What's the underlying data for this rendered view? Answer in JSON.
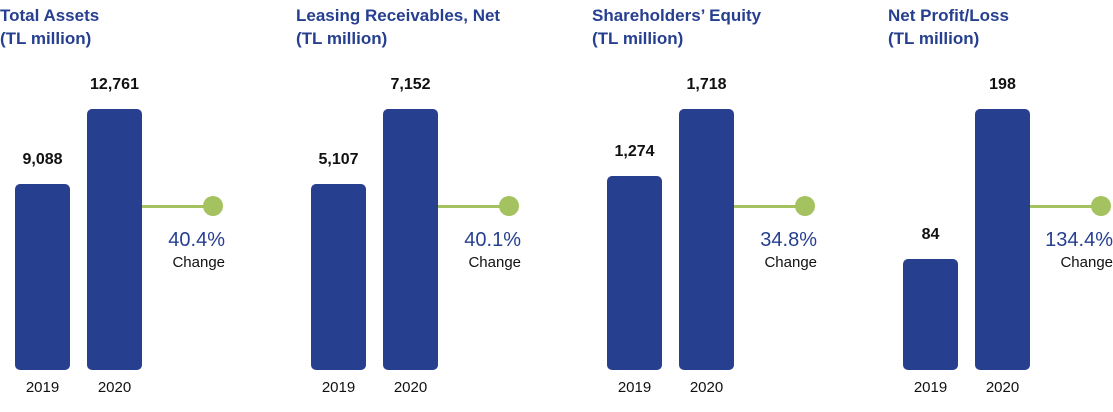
{
  "chart_data": [
    {
      "type": "bar",
      "title_lines": [
        "Total Assets",
        "(TL million)"
      ],
      "categories": [
        "2019",
        "2020"
      ],
      "values": [
        9088,
        12761
      ],
      "value_labels": [
        "9,088",
        "12,761"
      ],
      "change": {
        "value": "40.4%",
        "label": "Change"
      }
    },
    {
      "type": "bar",
      "title_lines": [
        "Leasing Receivables, Net",
        "(TL million)"
      ],
      "categories": [
        "2019",
        "2020"
      ],
      "values": [
        5107,
        7152
      ],
      "value_labels": [
        "5,107",
        "7,152"
      ],
      "change": {
        "value": "40.1%",
        "label": "Change"
      }
    },
    {
      "type": "bar",
      "title_lines": [
        "Shareholders’ Equity",
        "(TL million)"
      ],
      "categories": [
        "2019",
        "2020"
      ],
      "values": [
        1274,
        1718
      ],
      "value_labels": [
        "1,274",
        "1,718"
      ],
      "change": {
        "value": "34.8%",
        "label": "Change"
      }
    },
    {
      "type": "bar",
      "title_lines": [
        "Net Profit/Loss",
        "(TL million)"
      ],
      "categories": [
        "2019",
        "2020"
      ],
      "values": [
        84,
        198
      ],
      "value_labels": [
        "84",
        "198"
      ],
      "change": {
        "value": "134.4%",
        "label": "Change"
      }
    }
  ],
  "colors": {
    "bar": "#273f8f",
    "title": "#263f8f",
    "accent": "#a4c25f"
  }
}
